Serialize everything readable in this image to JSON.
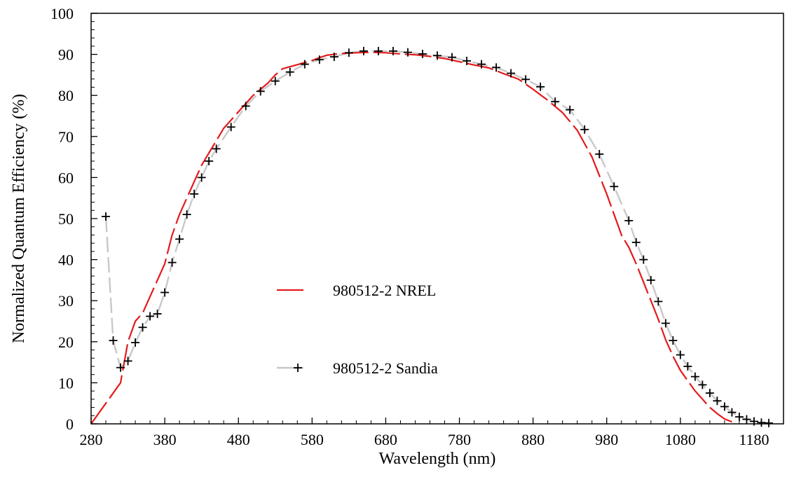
{
  "chart_data": {
    "type": "line",
    "title": "",
    "xlabel": "Wavelength (nm)",
    "ylabel": "Normalized Quantum Efficiency (%)",
    "xlim": [
      280,
      1220
    ],
    "ylim": [
      0,
      100
    ],
    "xticks": [
      280,
      380,
      480,
      580,
      680,
      780,
      880,
      980,
      1080,
      1180
    ],
    "yticks": [
      0,
      10,
      20,
      30,
      40,
      50,
      60,
      70,
      80,
      90,
      100
    ],
    "grid": false,
    "legend_position": "center-left",
    "series": [
      {
        "name": "980512-2 NREL",
        "color": "#e41a1c",
        "line_style": "long-dash",
        "marker": "none",
        "x": [
          280,
          300,
          320,
          330,
          340,
          350,
          360,
          370,
          380,
          390,
          400,
          410,
          420,
          430,
          440,
          450,
          460,
          470,
          480,
          490,
          500,
          510,
          520,
          530,
          540,
          550,
          560,
          570,
          580,
          590,
          600,
          620,
          640,
          660,
          680,
          700,
          720,
          740,
          760,
          780,
          800,
          820,
          840,
          860,
          880,
          900,
          920,
          940,
          960,
          980,
          1000,
          1010,
          1020,
          1030,
          1040,
          1050,
          1060,
          1070,
          1080,
          1090,
          1100,
          1110,
          1120,
          1130,
          1140,
          1150
        ],
        "y": [
          0,
          5,
          10,
          20,
          25,
          27,
          31,
          35,
          39,
          46,
          51,
          55,
          59,
          63,
          66,
          69,
          72,
          74,
          76,
          78,
          80,
          81.5,
          83,
          85,
          86.5,
          87,
          87.5,
          88,
          88.5,
          89.2,
          89.8,
          90.2,
          90.4,
          90.5,
          90.4,
          90.1,
          89.9,
          89.5,
          89,
          88.2,
          87.4,
          86.7,
          85.3,
          84,
          81.5,
          78.8,
          75.8,
          71.5,
          65,
          56,
          46,
          43,
          39,
          34.5,
          30,
          25.5,
          20.5,
          16.5,
          13,
          10.5,
          8,
          6,
          4,
          2.5,
          1.2,
          0.5
        ]
      },
      {
        "name": "980512-2 Sandia",
        "color": "#c8c8c8",
        "marker_color": "#000000",
        "line_style": "dash",
        "marker": "plus",
        "x": [
          300,
          310,
          320,
          330,
          340,
          350,
          360,
          370,
          380,
          390,
          400,
          410,
          420,
          430,
          440,
          450,
          470,
          490,
          510,
          530,
          550,
          570,
          590,
          610,
          630,
          650,
          670,
          690,
          710,
          730,
          750,
          770,
          790,
          810,
          830,
          850,
          870,
          890,
          910,
          930,
          950,
          970,
          990,
          1010,
          1020,
          1030,
          1040,
          1050,
          1060,
          1070,
          1080,
          1090,
          1100,
          1110,
          1120,
          1130,
          1140,
          1150,
          1160,
          1170,
          1180,
          1190,
          1200
        ],
        "y": [
          50.5,
          20.3,
          13.7,
          15.3,
          19.8,
          23.5,
          26.2,
          26.8,
          32,
          39.3,
          45,
          51,
          56,
          60,
          64,
          67,
          72.3,
          77.4,
          81,
          83.5,
          85.7,
          87.6,
          88.7,
          89.4,
          90.4,
          90.8,
          90.8,
          90.8,
          90.5,
          90.1,
          89.7,
          89.3,
          88.4,
          87.6,
          86.8,
          85.4,
          83.9,
          82.1,
          78.5,
          76.5,
          71.7,
          65.7,
          57.8,
          49.5,
          44.2,
          40,
          35,
          29.8,
          24.5,
          20.3,
          16.8,
          14,
          11.5,
          9.5,
          7.5,
          5.6,
          4.2,
          2.8,
          1.7,
          1.1,
          0.6,
          0.3,
          0.2
        ]
      }
    ]
  }
}
